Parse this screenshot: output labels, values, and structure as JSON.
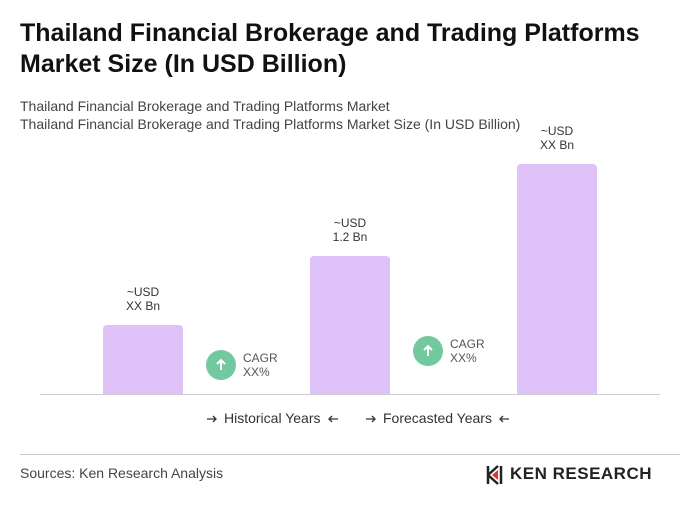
{
  "chart_data": {
    "type": "bar",
    "title": "Thailand Financial Brokerage and Trading Platforms Market Size (In USD Billion)",
    "subtitle": [
      "Thailand Financial Brokerage and Trading Platforms Market",
      "Thailand Financial Brokerage and Trading Platforms Market Size (In USD Billion)"
    ],
    "values": [
      0.6,
      1.2,
      2.0
    ],
    "value_labels": [
      "~USD\nXX Bn",
      "~USD\n1.2 Bn",
      "~USD\nXX Bn"
    ],
    "color": "#dfc3f8",
    "annotations": [
      "CAGR\nXX%",
      "CAGR\nXX%"
    ],
    "legend": [
      "Historical Years",
      "Forecasted Years"
    ],
    "source": "Sources: Ken Research Analysis",
    "logo": "KEN RESEARCH"
  }
}
